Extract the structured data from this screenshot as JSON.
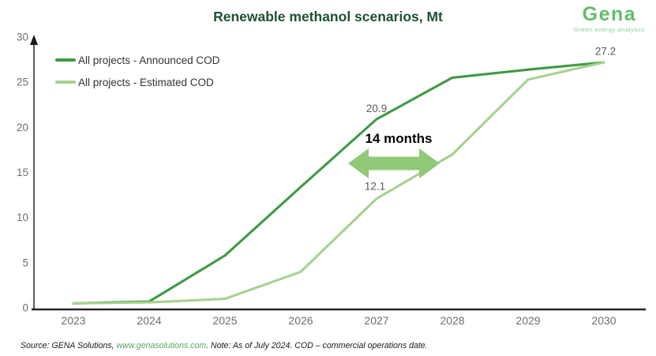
{
  "header": {
    "title": "Renewable methanol scenarios, Mt",
    "logo": {
      "name": "Gena",
      "tagline": "Green energy analytics",
      "brand_color": "#63bd6b"
    }
  },
  "chart_data": {
    "type": "line",
    "title": "Renewable methanol scenarios, Mt",
    "xlabel": "",
    "ylabel": "Mt",
    "x": [
      2023,
      2024,
      2025,
      2026,
      2027,
      2028,
      2029,
      2030
    ],
    "series": [
      {
        "name": "All projects - Announced COD",
        "color": "#3e9b45",
        "values": [
          0.5,
          0.7,
          5.8,
          13.4,
          20.9,
          25.5,
          26.4,
          27.2
        ]
      },
      {
        "name": "All projects - Estimated COD",
        "color": "#a5d28f",
        "values": [
          0.5,
          0.6,
          1.0,
          4.0,
          12.1,
          17.0,
          25.3,
          27.2
        ]
      }
    ],
    "ylim": [
      0,
      30
    ],
    "yticks": [
      0,
      5,
      10,
      15,
      20,
      25,
      30
    ],
    "grid": false,
    "legend_position": "top-left",
    "point_labels": [
      {
        "series": 0,
        "x_index": 4,
        "text": "20.9"
      },
      {
        "series": 1,
        "x_index": 4,
        "text": "12.1"
      },
      {
        "series": 0,
        "x_index": 7,
        "text": "27.2"
      }
    ],
    "annotation": {
      "text": "14 months",
      "arrow_color": "#90c978",
      "text_color": "#000000"
    },
    "tick_color": "#6e6e6e",
    "point_label_color": "#595959"
  },
  "footer": {
    "source_prefix": "Source: GENA Solutions, ",
    "source_link": "www.genasolutions.com",
    "source_suffix": ". Note: As of July 2024. COD – commercial operations date."
  }
}
